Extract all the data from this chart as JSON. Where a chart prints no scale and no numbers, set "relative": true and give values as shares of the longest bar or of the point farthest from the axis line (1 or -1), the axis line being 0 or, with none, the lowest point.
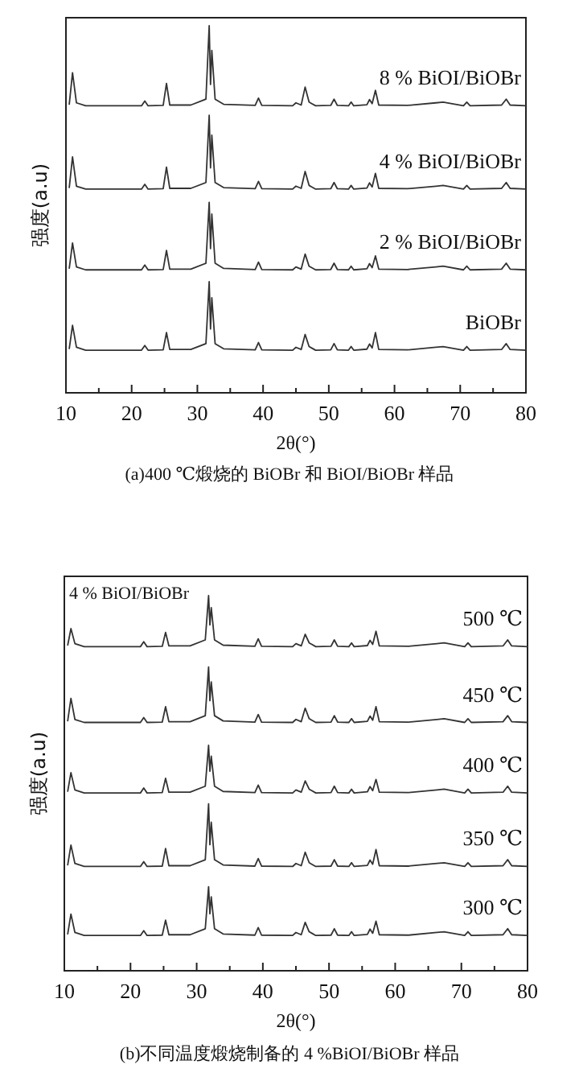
{
  "chart_data": [
    {
      "type": "line",
      "xlabel": "2θ(°)",
      "ylabel": "强度(a.u)",
      "relative": true,
      "tick_labels": "x",
      "xlim": [
        10,
        80
      ],
      "xticks": [
        10,
        20,
        30,
        40,
        50,
        60,
        70,
        80
      ],
      "x": [
        10.5,
        11.0,
        11.6,
        13,
        21.5,
        22.0,
        22.5,
        24.8,
        25.3,
        25.8,
        29,
        31.3,
        31.8,
        32.0,
        32.2,
        32.7,
        34,
        38.8,
        39.3,
        39.8,
        44.5,
        45,
        45.8,
        46.4,
        47.0,
        47.4,
        48,
        50.3,
        50.8,
        51.3,
        53.0,
        53.4,
        53.8,
        55.8,
        56.2,
        56.6,
        57.1,
        57.6,
        62,
        66.3,
        67.4,
        70.5,
        71.0,
        71.5,
        76.3,
        77,
        77.6,
        80
      ],
      "series": [
        {
          "name": "8 % BiOI/BiOBr",
          "color": "#333333",
          "values": [
            0.785,
            0.872,
            0.79,
            0.782,
            0.782,
            0.795,
            0.782,
            0.783,
            0.843,
            0.784,
            0.784,
            0.8,
            1.0,
            0.84,
            0.933,
            0.8,
            0.786,
            0.783,
            0.803,
            0.783,
            0.782,
            0.79,
            0.784,
            0.833,
            0.792,
            0.788,
            0.782,
            0.783,
            0.8,
            0.783,
            0.782,
            0.792,
            0.782,
            0.785,
            0.799,
            0.788,
            0.824,
            0.784,
            0.783,
            0.79,
            0.792,
            0.782,
            0.792,
            0.782,
            0.784,
            0.8,
            0.784,
            0.782
          ]
        },
        {
          "name": "4 % BiOI/BiOBr",
          "color": "#333333",
          "values": [
            0.558,
            0.643,
            0.563,
            0.555,
            0.555,
            0.568,
            0.555,
            0.556,
            0.615,
            0.557,
            0.557,
            0.573,
            0.756,
            0.613,
            0.702,
            0.573,
            0.559,
            0.556,
            0.576,
            0.556,
            0.555,
            0.563,
            0.557,
            0.603,
            0.565,
            0.561,
            0.555,
            0.556,
            0.573,
            0.556,
            0.555,
            0.565,
            0.555,
            0.558,
            0.572,
            0.561,
            0.598,
            0.557,
            0.556,
            0.563,
            0.565,
            0.555,
            0.565,
            0.555,
            0.557,
            0.573,
            0.557,
            0.555
          ]
        },
        {
          "name": "2 % BiOI/BiOBr",
          "color": "#333333",
          "values": [
            0.338,
            0.408,
            0.343,
            0.335,
            0.335,
            0.348,
            0.335,
            0.336,
            0.388,
            0.337,
            0.337,
            0.353,
            0.519,
            0.393,
            0.487,
            0.353,
            0.339,
            0.336,
            0.356,
            0.336,
            0.335,
            0.343,
            0.337,
            0.378,
            0.345,
            0.341,
            0.335,
            0.336,
            0.353,
            0.336,
            0.335,
            0.345,
            0.335,
            0.338,
            0.352,
            0.341,
            0.373,
            0.337,
            0.336,
            0.343,
            0.345,
            0.335,
            0.345,
            0.335,
            0.337,
            0.353,
            0.337,
            0.335
          ]
        },
        {
          "name": "BiOBr",
          "color": "#333333",
          "values": [
            0.119,
            0.184,
            0.124,
            0.116,
            0.116,
            0.129,
            0.116,
            0.117,
            0.164,
            0.118,
            0.118,
            0.134,
            0.303,
            0.174,
            0.259,
            0.134,
            0.12,
            0.117,
            0.137,
            0.117,
            0.116,
            0.124,
            0.118,
            0.159,
            0.126,
            0.122,
            0.116,
            0.117,
            0.134,
            0.117,
            0.116,
            0.126,
            0.116,
            0.119,
            0.133,
            0.122,
            0.164,
            0.118,
            0.117,
            0.124,
            0.126,
            0.116,
            0.126,
            0.116,
            0.118,
            0.134,
            0.118,
            0.116
          ]
        }
      ],
      "annotations": [
        "(a)400 ℃煅烧的 BiOBr 和 BiOI/BiOBr 样品"
      ]
    },
    {
      "type": "line",
      "xlabel": "2θ(°)",
      "ylabel": "强度(a.u)",
      "relative": true,
      "tick_labels": "x",
      "xlim": [
        10,
        80
      ],
      "xticks": [
        10,
        20,
        30,
        40,
        50,
        60,
        70,
        80
      ],
      "x": [
        10.5,
        11.0,
        11.6,
        13,
        21.5,
        22.0,
        22.5,
        24.8,
        25.3,
        25.8,
        29,
        31.3,
        31.8,
        32.0,
        32.2,
        32.7,
        34,
        38.8,
        39.3,
        39.8,
        44.5,
        45,
        45.8,
        46.4,
        47.0,
        47.4,
        48,
        50.3,
        50.8,
        51.3,
        53.0,
        53.4,
        53.8,
        55.8,
        56.2,
        56.6,
        57.1,
        57.6,
        62,
        66.3,
        67.4,
        70.5,
        71.0,
        71.5,
        76.3,
        77,
        77.6,
        80
      ],
      "series": [
        {
          "name": "500 ℃",
          "color": "#333333",
          "values": [
            0.867,
            0.912,
            0.872,
            0.864,
            0.864,
            0.877,
            0.864,
            0.865,
            0.902,
            0.866,
            0.866,
            0.882,
            1.0,
            0.922,
            0.968,
            0.882,
            0.868,
            0.865,
            0.885,
            0.865,
            0.864,
            0.872,
            0.866,
            0.897,
            0.874,
            0.87,
            0.864,
            0.865,
            0.882,
            0.865,
            0.864,
            0.874,
            0.864,
            0.867,
            0.881,
            0.87,
            0.905,
            0.866,
            0.865,
            0.872,
            0.874,
            0.864,
            0.874,
            0.864,
            0.866,
            0.882,
            0.866,
            0.864
          ]
        },
        {
          "name": "450 ℃",
          "color": "#333333",
          "values": [
            0.665,
            0.726,
            0.67,
            0.662,
            0.662,
            0.675,
            0.662,
            0.663,
            0.704,
            0.664,
            0.664,
            0.68,
            0.81,
            0.72,
            0.77,
            0.68,
            0.666,
            0.663,
            0.683,
            0.663,
            0.662,
            0.67,
            0.664,
            0.7,
            0.672,
            0.668,
            0.662,
            0.663,
            0.68,
            0.663,
            0.662,
            0.672,
            0.662,
            0.665,
            0.679,
            0.668,
            0.704,
            0.664,
            0.663,
            0.67,
            0.672,
            0.662,
            0.672,
            0.662,
            0.664,
            0.68,
            0.664,
            0.662
          ]
        },
        {
          "name": "400 ℃",
          "color": "#333333",
          "values": [
            0.477,
            0.528,
            0.482,
            0.474,
            0.474,
            0.487,
            0.474,
            0.475,
            0.513,
            0.476,
            0.476,
            0.492,
            0.601,
            0.532,
            0.572,
            0.492,
            0.478,
            0.475,
            0.495,
            0.475,
            0.474,
            0.482,
            0.476,
            0.506,
            0.484,
            0.48,
            0.474,
            0.475,
            0.492,
            0.475,
            0.474,
            0.484,
            0.474,
            0.477,
            0.491,
            0.48,
            0.51,
            0.476,
            0.475,
            0.482,
            0.484,
            0.474,
            0.484,
            0.474,
            0.476,
            0.492,
            0.476,
            0.474
          ]
        },
        {
          "name": "350 ℃",
          "color": "#333333",
          "values": [
            0.281,
            0.335,
            0.286,
            0.278,
            0.278,
            0.291,
            0.278,
            0.279,
            0.326,
            0.28,
            0.28,
            0.296,
            0.445,
            0.336,
            0.396,
            0.296,
            0.282,
            0.279,
            0.299,
            0.279,
            0.278,
            0.286,
            0.28,
            0.316,
            0.288,
            0.284,
            0.278,
            0.279,
            0.296,
            0.279,
            0.278,
            0.288,
            0.278,
            0.281,
            0.295,
            0.284,
            0.323,
            0.28,
            0.279,
            0.286,
            0.288,
            0.278,
            0.288,
            0.278,
            0.28,
            0.296,
            0.28,
            0.278
          ]
        },
        {
          "name": "300 ℃",
          "color": "#333333",
          "values": [
            0.097,
            0.151,
            0.102,
            0.094,
            0.094,
            0.107,
            0.094,
            0.095,
            0.135,
            0.096,
            0.096,
            0.112,
            0.224,
            0.152,
            0.197,
            0.112,
            0.098,
            0.095,
            0.115,
            0.095,
            0.094,
            0.102,
            0.096,
            0.129,
            0.104,
            0.1,
            0.094,
            0.095,
            0.112,
            0.095,
            0.094,
            0.104,
            0.094,
            0.097,
            0.111,
            0.1,
            0.132,
            0.096,
            0.095,
            0.102,
            0.104,
            0.094,
            0.104,
            0.094,
            0.096,
            0.112,
            0.096,
            0.094
          ]
        }
      ],
      "annotations": [
        "4 % BiOI/BiOBr",
        "(b)不同温度煅烧制备的 4 %BiOI/BiOBr 样品"
      ]
    }
  ]
}
